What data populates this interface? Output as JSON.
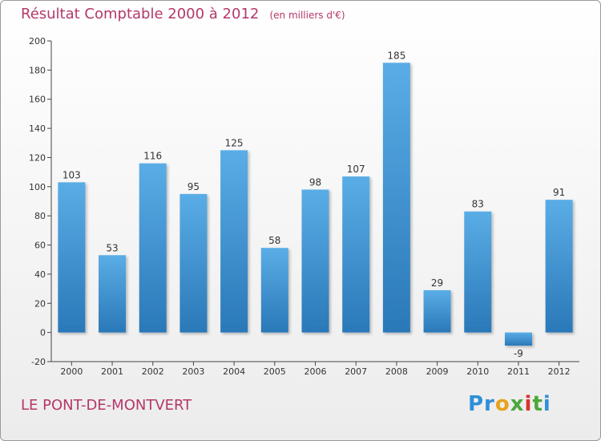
{
  "header": {
    "title": "Résultat Comptable 2000 à 2012",
    "unit": "(en milliers d'€)"
  },
  "footer": {
    "commune": "LE PONT-DE-MONTVERT",
    "logo": "Proxiti"
  },
  "colors": {
    "title": "#b5376a",
    "bar_top": "#5aade6",
    "bar_bottom": "#2a78b8",
    "axis": "#444444"
  },
  "chart_data": {
    "type": "bar",
    "categories": [
      "2000",
      "2001",
      "2002",
      "2003",
      "2004",
      "2005",
      "2006",
      "2007",
      "2008",
      "2009",
      "2010",
      "2011",
      "2012"
    ],
    "values": [
      103,
      53,
      116,
      95,
      125,
      58,
      98,
      107,
      185,
      29,
      83,
      -9,
      91
    ],
    "xlabel": "",
    "ylabel": "",
    "ylim": [
      -20,
      200
    ],
    "yticks": [
      -20,
      0,
      20,
      40,
      60,
      80,
      100,
      120,
      140,
      160,
      180,
      200
    ],
    "grid": false,
    "legend": "none"
  }
}
